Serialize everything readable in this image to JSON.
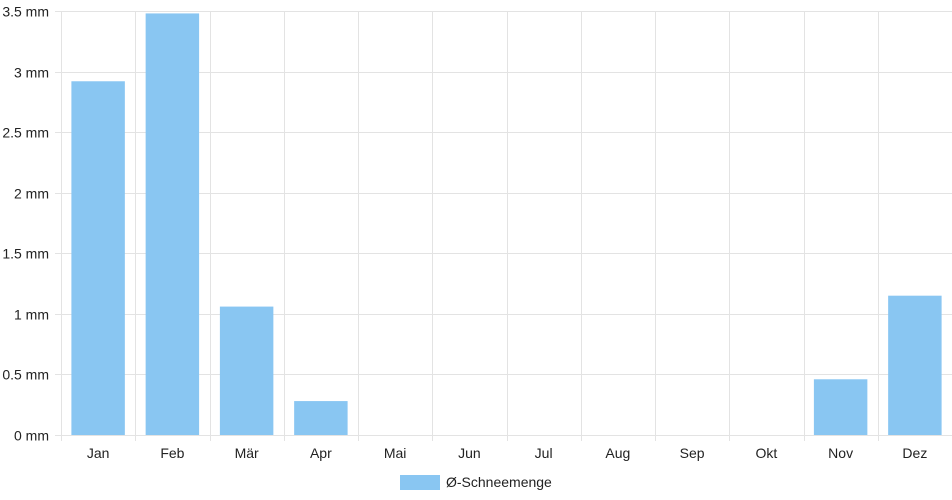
{
  "chart_data": {
    "type": "bar",
    "categories": [
      "Jan",
      "Feb",
      "Mär",
      "Apr",
      "Mai",
      "Jun",
      "Jul",
      "Aug",
      "Sep",
      "Okt",
      "Nov",
      "Dez"
    ],
    "series": [
      {
        "name": "Ø-Schneemenge",
        "values": [
          2.92,
          3.48,
          1.06,
          0.28,
          0,
          0,
          0,
          0,
          0,
          0,
          0.46,
          1.15
        ],
        "color": "#89c6f2"
      }
    ],
    "y_ticks": [
      0,
      0.5,
      1,
      1.5,
      2,
      2.5,
      3,
      3.5
    ],
    "y_tick_labels": [
      "0 mm",
      "0.5 mm",
      "1 mm",
      "1.5 mm",
      "2 mm",
      "2.5 mm",
      "3 mm",
      "3.5 mm"
    ],
    "ylim": [
      0,
      3.5
    ],
    "grid": true,
    "legend_position": "bottom",
    "colors": {
      "grid": "#e3e3e3",
      "axis_text": "#222222"
    }
  }
}
